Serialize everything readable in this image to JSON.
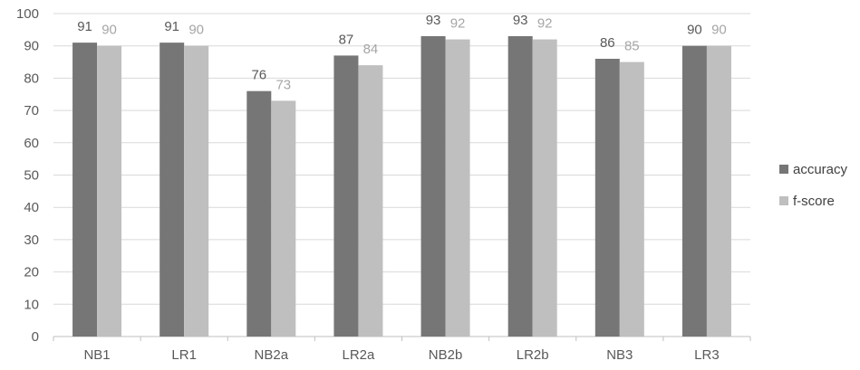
{
  "chart_data": {
    "type": "bar",
    "categories": [
      "NB1",
      "LR1",
      "NB2a",
      "LR2a",
      "NB2b",
      "LR2b",
      "NB3",
      "LR3"
    ],
    "series": [
      {
        "name": "accuracy",
        "values": [
          91,
          91,
          76,
          87,
          93,
          93,
          86,
          90
        ],
        "color": "#767676"
      },
      {
        "name": "f-score",
        "values": [
          90,
          90,
          73,
          84,
          92,
          92,
          85,
          90
        ],
        "color": "#bfbfbf"
      }
    ],
    "title": "",
    "xlabel": "",
    "ylabel": "",
    "ylim": [
      0,
      100
    ],
    "yticks": [
      0,
      10,
      20,
      30,
      40,
      50,
      60,
      70,
      80,
      90,
      100
    ],
    "grid": true,
    "data_labels": true,
    "legend_position": "right"
  }
}
